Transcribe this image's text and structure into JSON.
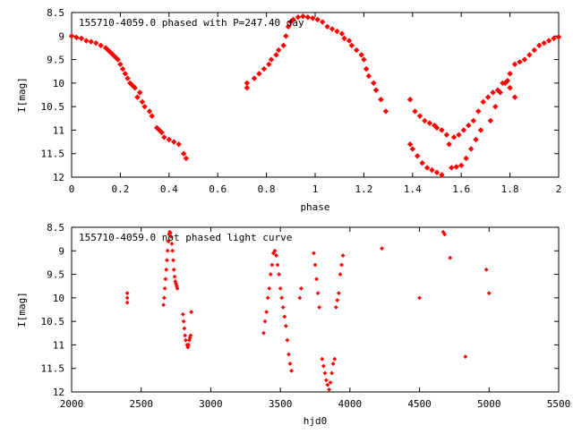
{
  "chart_data": [
    {
      "type": "scatter",
      "title": "155710-4059.0 phased with P=247.40 day",
      "xlabel": "phase",
      "ylabel": "I[mag]",
      "xlim": [
        0,
        2
      ],
      "ylim": [
        12,
        8.5
      ],
      "y_inverted": true,
      "grid": false,
      "xticks": [
        "0",
        "0.2",
        "0.4",
        "0.6",
        "0.8",
        "1",
        "1.2",
        "1.4",
        "1.6",
        "1.8",
        "2"
      ],
      "yticks": [
        "8.5",
        "9",
        "9.5",
        "10",
        "10.5",
        "11",
        "11.5",
        "12"
      ],
      "marker_color": "#ff0000",
      "marker_shape": "diamond",
      "points": [
        [
          0.0,
          9.0
        ],
        [
          0.02,
          9.03
        ],
        [
          0.04,
          9.05
        ],
        [
          0.06,
          9.1
        ],
        [
          0.08,
          9.12
        ],
        [
          0.1,
          9.15
        ],
        [
          0.12,
          9.2
        ],
        [
          0.14,
          9.25
        ],
        [
          0.15,
          9.3
        ],
        [
          0.16,
          9.35
        ],
        [
          0.17,
          9.4
        ],
        [
          0.18,
          9.45
        ],
        [
          0.19,
          9.5
        ],
        [
          0.2,
          9.6
        ],
        [
          0.21,
          9.7
        ],
        [
          0.22,
          9.8
        ],
        [
          0.23,
          9.9
        ],
        [
          0.24,
          10.0
        ],
        [
          0.25,
          10.05
        ],
        [
          0.26,
          10.1
        ],
        [
          0.28,
          10.2
        ],
        [
          0.27,
          10.3
        ],
        [
          0.29,
          10.4
        ],
        [
          0.3,
          10.5
        ],
        [
          0.32,
          10.6
        ],
        [
          0.33,
          10.7
        ],
        [
          0.35,
          10.95
        ],
        [
          0.36,
          11.0
        ],
        [
          0.37,
          11.05
        ],
        [
          0.38,
          11.15
        ],
        [
          0.4,
          11.2
        ],
        [
          0.42,
          11.25
        ],
        [
          0.44,
          11.3
        ],
        [
          0.46,
          11.5
        ],
        [
          0.47,
          11.6
        ],
        [
          0.72,
          10.0
        ],
        [
          0.72,
          10.1
        ],
        [
          0.75,
          9.9
        ],
        [
          0.77,
          9.8
        ],
        [
          0.79,
          9.7
        ],
        [
          0.81,
          9.6
        ],
        [
          0.82,
          9.5
        ],
        [
          0.84,
          9.4
        ],
        [
          0.85,
          9.3
        ],
        [
          0.87,
          9.2
        ],
        [
          0.88,
          9.0
        ],
        [
          0.89,
          8.8
        ],
        [
          0.9,
          8.7
        ],
        [
          0.91,
          8.65
        ],
        [
          0.93,
          8.6
        ],
        [
          0.95,
          8.58
        ],
        [
          0.97,
          8.6
        ],
        [
          0.99,
          8.62
        ],
        [
          1.01,
          8.65
        ],
        [
          1.03,
          8.7
        ],
        [
          1.05,
          8.8
        ],
        [
          1.07,
          8.85
        ],
        [
          1.09,
          8.9
        ],
        [
          1.11,
          8.95
        ],
        [
          1.12,
          9.05
        ],
        [
          1.14,
          9.1
        ],
        [
          1.15,
          9.2
        ],
        [
          1.17,
          9.3
        ],
        [
          1.19,
          9.4
        ],
        [
          1.2,
          9.5
        ],
        [
          1.21,
          9.7
        ],
        [
          1.22,
          9.85
        ],
        [
          1.24,
          10.0
        ],
        [
          1.25,
          10.15
        ],
        [
          1.27,
          10.35
        ],
        [
          1.29,
          10.6
        ],
        [
          1.39,
          10.35
        ],
        [
          1.41,
          10.6
        ],
        [
          1.43,
          10.7
        ],
        [
          1.45,
          10.8
        ],
        [
          1.47,
          10.85
        ],
        [
          1.49,
          10.9
        ],
        [
          1.5,
          10.95
        ],
        [
          1.52,
          11.0
        ],
        [
          1.54,
          11.1
        ],
        [
          1.55,
          11.3
        ],
        [
          1.57,
          11.15
        ],
        [
          1.59,
          11.1
        ],
        [
          1.61,
          11.0
        ],
        [
          1.63,
          10.9
        ],
        [
          1.65,
          10.8
        ],
        [
          1.67,
          10.6
        ],
        [
          1.69,
          10.4
        ],
        [
          1.71,
          10.3
        ],
        [
          1.73,
          10.2
        ],
        [
          1.75,
          10.15
        ],
        [
          1.77,
          10.0
        ],
        [
          1.79,
          9.95
        ],
        [
          1.8,
          9.8
        ],
        [
          1.82,
          9.6
        ],
        [
          1.84,
          9.55
        ],
        [
          1.86,
          9.5
        ],
        [
          1.88,
          9.4
        ],
        [
          1.9,
          9.3
        ],
        [
          1.92,
          9.2
        ],
        [
          1.94,
          9.15
        ],
        [
          1.96,
          9.1
        ],
        [
          1.98,
          9.05
        ],
        [
          2.0,
          9.02
        ],
        [
          1.39,
          11.3
        ],
        [
          1.4,
          11.4
        ],
        [
          1.42,
          11.55
        ],
        [
          1.44,
          11.7
        ],
        [
          1.46,
          11.8
        ],
        [
          1.48,
          11.85
        ],
        [
          1.5,
          11.9
        ],
        [
          1.52,
          11.95
        ],
        [
          1.56,
          11.8
        ],
        [
          1.58,
          11.78
        ],
        [
          1.6,
          11.75
        ],
        [
          1.62,
          11.6
        ],
        [
          1.64,
          11.4
        ],
        [
          1.66,
          11.2
        ],
        [
          1.68,
          11.0
        ],
        [
          1.72,
          10.8
        ],
        [
          1.74,
          10.5
        ],
        [
          1.76,
          10.2
        ],
        [
          1.78,
          10.0
        ],
        [
          1.8,
          10.1
        ],
        [
          1.82,
          10.3
        ]
      ]
    },
    {
      "type": "scatter",
      "title": "155710-4059.0 not phased light curve",
      "xlabel": "hjd0",
      "ylabel": "I[mag]",
      "xlim": [
        2000,
        5500
      ],
      "ylim": [
        12,
        8.5
      ],
      "y_inverted": true,
      "grid": false,
      "xticks": [
        "2000",
        "2500",
        "3000",
        "3500",
        "4000",
        "4500",
        "5000",
        "5500"
      ],
      "yticks": [
        "8.5",
        "9",
        "9.5",
        "10",
        "10.5",
        "11",
        "11.5",
        "12"
      ],
      "marker_color": "#ff0000",
      "marker_shape": "diamond",
      "points": [
        [
          2400,
          9.9
        ],
        [
          2400,
          10.0
        ],
        [
          2400,
          10.1
        ],
        [
          2660,
          10.15
        ],
        [
          2665,
          10.0
        ],
        [
          2670,
          9.8
        ],
        [
          2675,
          9.6
        ],
        [
          2680,
          9.4
        ],
        [
          2685,
          9.2
        ],
        [
          2690,
          9.0
        ],
        [
          2695,
          8.8
        ],
        [
          2700,
          8.65
        ],
        [
          2705,
          8.6
        ],
        [
          2710,
          8.62
        ],
        [
          2715,
          8.7
        ],
        [
          2720,
          8.85
        ],
        [
          2725,
          9.0
        ],
        [
          2730,
          9.2
        ],
        [
          2735,
          9.4
        ],
        [
          2740,
          9.55
        ],
        [
          2745,
          9.65
        ],
        [
          2750,
          9.7
        ],
        [
          2755,
          9.75
        ],
        [
          2760,
          9.8
        ],
        [
          2800,
          10.35
        ],
        [
          2805,
          10.5
        ],
        [
          2810,
          10.65
        ],
        [
          2815,
          10.8
        ],
        [
          2820,
          10.9
        ],
        [
          2830,
          11.0
        ],
        [
          2835,
          11.05
        ],
        [
          2840,
          11.0
        ],
        [
          2845,
          10.9
        ],
        [
          2850,
          10.85
        ],
        [
          2855,
          10.8
        ],
        [
          2860,
          10.3
        ],
        [
          3380,
          10.75
        ],
        [
          3390,
          10.5
        ],
        [
          3400,
          10.3
        ],
        [
          3410,
          10.0
        ],
        [
          3420,
          9.8
        ],
        [
          3430,
          9.5
        ],
        [
          3440,
          9.3
        ],
        [
          3450,
          9.05
        ],
        [
          3460,
          9.0
        ],
        [
          3470,
          9.1
        ],
        [
          3480,
          9.3
        ],
        [
          3490,
          9.5
        ],
        [
          3500,
          9.8
        ],
        [
          3510,
          10.0
        ],
        [
          3520,
          10.2
        ],
        [
          3530,
          10.4
        ],
        [
          3540,
          10.6
        ],
        [
          3550,
          10.9
        ],
        [
          3560,
          11.2
        ],
        [
          3570,
          11.4
        ],
        [
          3580,
          11.55
        ],
        [
          3640,
          10.0
        ],
        [
          3650,
          9.8
        ],
        [
          3740,
          9.05
        ],
        [
          3750,
          9.3
        ],
        [
          3760,
          9.6
        ],
        [
          3770,
          9.9
        ],
        [
          3780,
          10.2
        ],
        [
          3800,
          11.3
        ],
        [
          3810,
          11.45
        ],
        [
          3820,
          11.6
        ],
        [
          3830,
          11.75
        ],
        [
          3840,
          11.85
        ],
        [
          3850,
          11.95
        ],
        [
          3860,
          11.8
        ],
        [
          3870,
          11.6
        ],
        [
          3880,
          11.4
        ],
        [
          3890,
          11.3
        ],
        [
          3900,
          10.2
        ],
        [
          3910,
          10.05
        ],
        [
          3920,
          9.9
        ],
        [
          3930,
          9.5
        ],
        [
          3940,
          9.3
        ],
        [
          3950,
          9.1
        ],
        [
          4230,
          8.95
        ],
        [
          4500,
          10.0
        ],
        [
          4670,
          8.6
        ],
        [
          4680,
          8.65
        ],
        [
          4720,
          9.15
        ],
        [
          4830,
          11.25
        ],
        [
          4980,
          9.4
        ],
        [
          5000,
          9.9
        ]
      ]
    }
  ]
}
